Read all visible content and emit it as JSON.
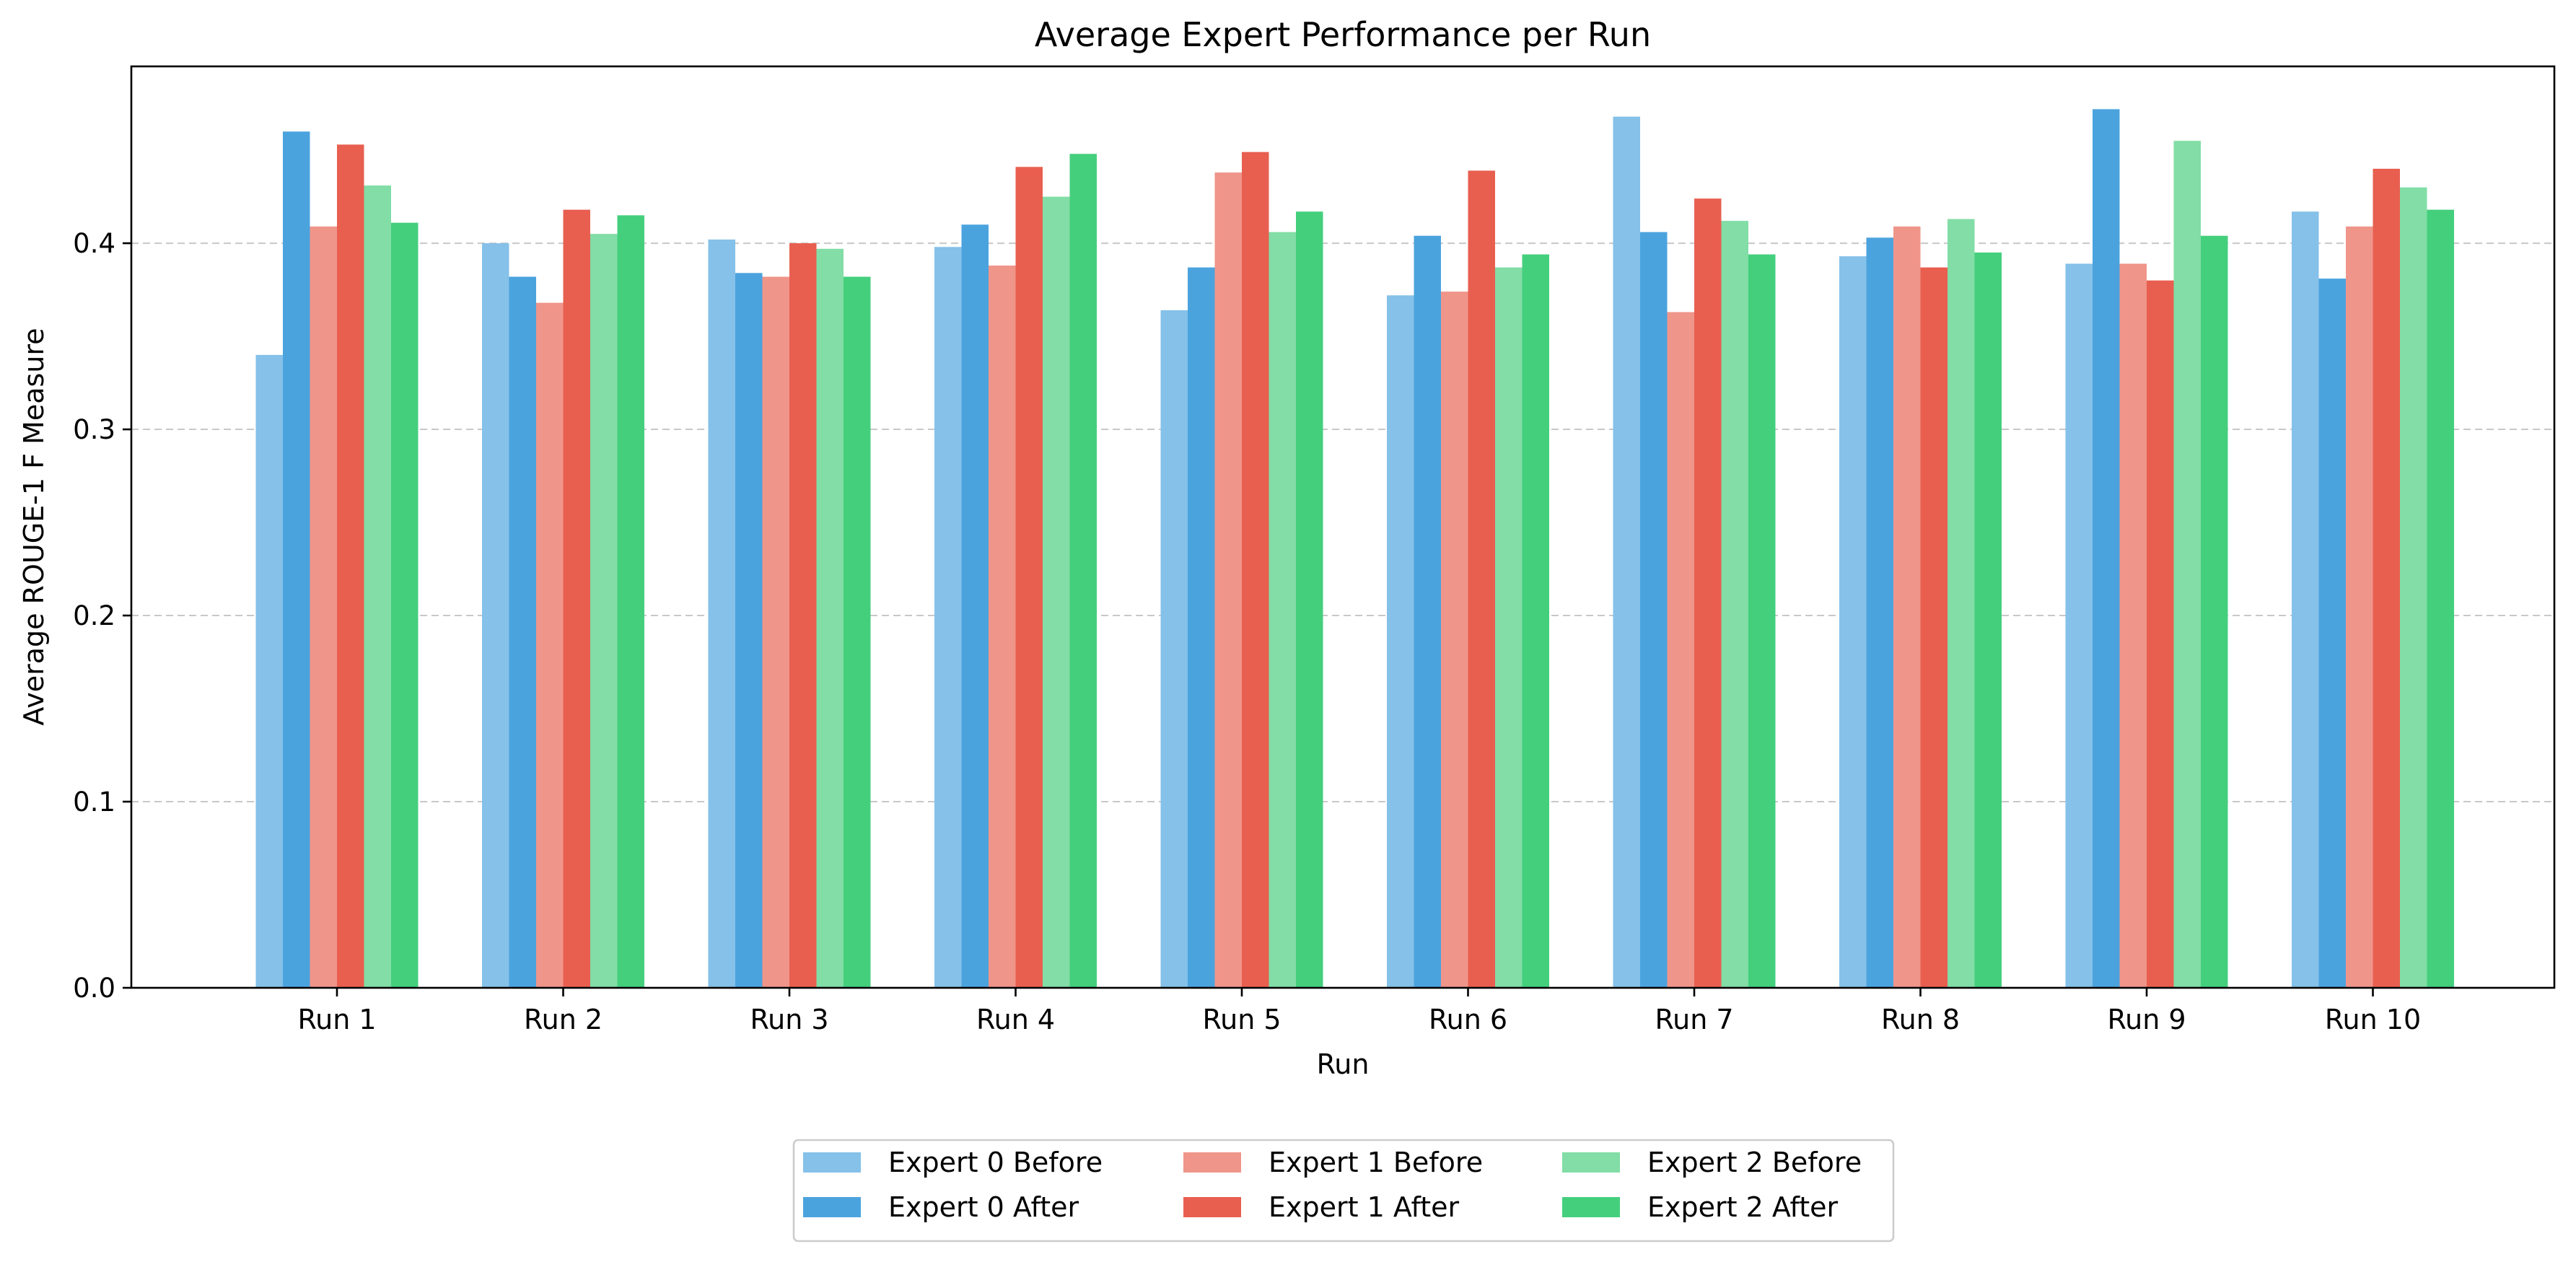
{
  "chart_data": {
    "type": "bar",
    "title": "Average Expert Performance per Run",
    "xlabel": "Run",
    "ylabel": "Average ROUGE-1 F Measure",
    "ylim": [
      0,
      0.495
    ],
    "yticks": [
      0.0,
      0.1,
      0.2,
      0.3,
      0.4
    ],
    "ytick_labels": [
      "0.0",
      "0.1",
      "0.2",
      "0.3",
      "0.4"
    ],
    "grid": "y-dashed",
    "legend_position": "bottom-center",
    "categories": [
      "Run 1",
      "Run 2",
      "Run 3",
      "Run 4",
      "Run 5",
      "Run 6",
      "Run 7",
      "Run 8",
      "Run 9",
      "Run 10"
    ],
    "series": [
      {
        "name": "Expert 0 Before",
        "color": "#85C1E9",
        "values": [
          0.34,
          0.4,
          0.402,
          0.398,
          0.364,
          0.372,
          0.468,
          0.393,
          0.389,
          0.417
        ]
      },
      {
        "name": "Expert 0 After",
        "color": "#4BA3DE",
        "values": [
          0.46,
          0.382,
          0.384,
          0.41,
          0.387,
          0.404,
          0.406,
          0.403,
          0.472,
          0.381
        ]
      },
      {
        "name": "Expert 1 Before",
        "color": "#F0958A",
        "values": [
          0.409,
          0.368,
          0.382,
          0.388,
          0.438,
          0.374,
          0.363,
          0.409,
          0.389,
          0.409
        ]
      },
      {
        "name": "Expert 1 After",
        "color": "#E85F50",
        "values": [
          0.453,
          0.418,
          0.4,
          0.441,
          0.449,
          0.439,
          0.424,
          0.387,
          0.38,
          0.44
        ]
      },
      {
        "name": "Expert 2 Before",
        "color": "#82DDA6",
        "values": [
          0.431,
          0.405,
          0.397,
          0.425,
          0.406,
          0.387,
          0.412,
          0.413,
          0.455,
          0.43
        ]
      },
      {
        "name": "Expert 2 After",
        "color": "#44CF7D",
        "values": [
          0.411,
          0.415,
          0.382,
          0.448,
          0.417,
          0.394,
          0.394,
          0.395,
          0.404,
          0.418
        ]
      }
    ]
  }
}
